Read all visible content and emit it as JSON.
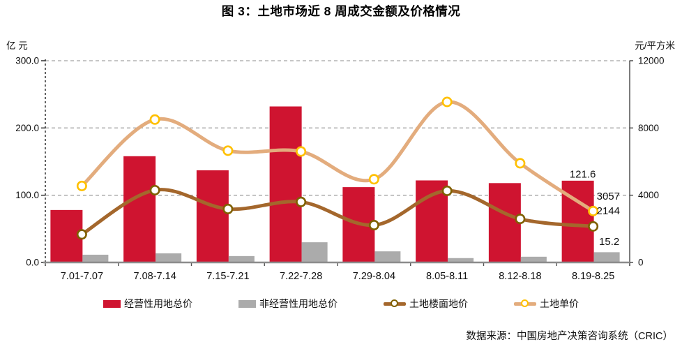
{
  "title": "图 3：土地市场近 8 周成交金额及价格情况",
  "source": "数据来源：中国房地产决策咨询系统（CRIC）",
  "chart_data": {
    "type": "bar+line",
    "categories": [
      "7.01-7.07",
      "7.08-7.14",
      "7.15-7.21",
      "7.22-7.28",
      "7.29-8.04",
      "8.05-8.11",
      "8.12-8.18",
      "8.19-8.25"
    ],
    "left_axis": {
      "unit": "亿 元",
      "min": 0,
      "max": 300,
      "tick_values": [
        0,
        100,
        200,
        300
      ],
      "tick_labels": [
        "0.0",
        "100.0",
        "200.0",
        "300.0"
      ]
    },
    "right_axis": {
      "unit": "元/平方米",
      "min": 0,
      "max": 12000,
      "tick_values": [
        0,
        4000,
        8000,
        12000
      ],
      "tick_labels": [
        "0",
        "4000",
        "8000",
        "12000"
      ]
    },
    "bar_series": [
      {
        "name": "经营性用地总价",
        "axis": "left",
        "color": "#CF1430",
        "values": [
          78,
          158,
          137,
          232,
          112,
          122,
          118,
          121.6
        ]
      },
      {
        "name": "非经营性用地总价",
        "axis": "left",
        "color": "#ABABAB",
        "values": [
          11.5,
          13.5,
          9.5,
          30,
          16.5,
          6.5,
          8.5,
          15.2
        ]
      }
    ],
    "line_series": [
      {
        "name": "土地楼面地价",
        "axis": "right",
        "color": "#A4672C",
        "marker_color": "#7F6000",
        "values": [
          1670,
          4300,
          3180,
          3600,
          2220,
          4260,
          2590,
          2144
        ]
      },
      {
        "name": "土地单价",
        "axis": "right",
        "color": "#E3AC7D",
        "marker_color": "#FFC000",
        "values": [
          4550,
          8500,
          6650,
          6600,
          4950,
          9550,
          5900,
          3057
        ]
      }
    ],
    "annotations": [
      {
        "text": "121.6"
      },
      {
        "text": "3057"
      },
      {
        "text": "2144"
      },
      {
        "text": "15.2"
      }
    ],
    "grid": "horizontal-dashed",
    "legend_position": "bottom"
  }
}
